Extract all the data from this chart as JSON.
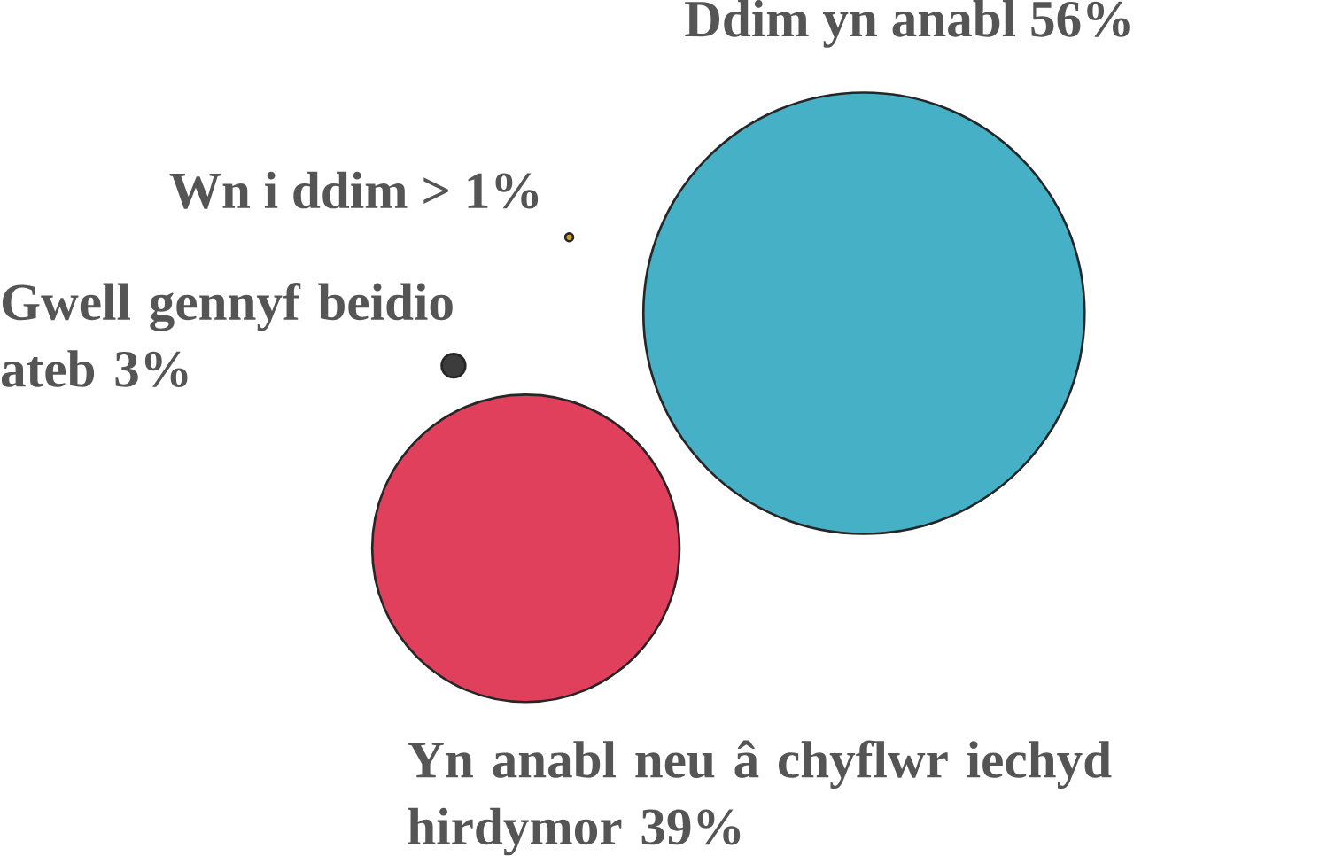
{
  "chart_data": {
    "type": "other",
    "categories": [
      "Ddim yn anabl",
      "Wn i ddim",
      "Gwell gennyf beidio ateb",
      "Yn anabl neu â chyflwr iechyd hirdymor"
    ],
    "values": [
      56,
      1,
      3,
      39
    ],
    "value_labels": [
      "56%",
      "> 1%",
      "3%",
      "39%"
    ],
    "colors": [
      "#45b0c6",
      "#c9a227",
      "#3c3c3c",
      "#e0405c"
    ]
  }
}
